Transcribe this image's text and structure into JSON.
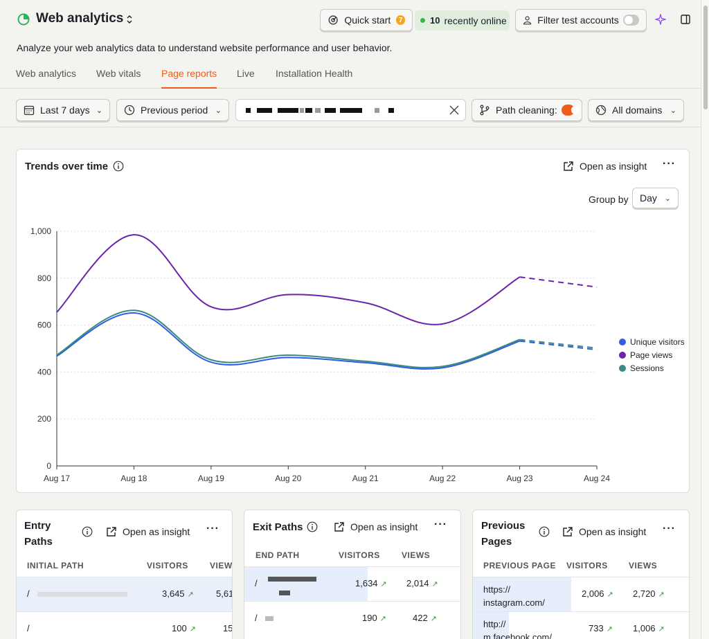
{
  "header": {
    "title": "Web analytics",
    "description": "Analyze your web analytics data to understand website performance and user behavior.",
    "quick_start_label": "Quick start",
    "quick_start_badge": "7",
    "online_count": "10",
    "online_label": "recently online",
    "filter_test_label": "Filter test accounts",
    "filter_test_on": false
  },
  "tabs": [
    {
      "label": "Web analytics",
      "active": false
    },
    {
      "label": "Web vitals",
      "active": false
    },
    {
      "label": "Page reports",
      "active": true
    },
    {
      "label": "Live",
      "active": false
    },
    {
      "label": "Installation Health",
      "active": false
    }
  ],
  "filters": {
    "date_range": "Last 7 days",
    "compare": "Previous period",
    "path_cleaning_label": "Path cleaning:",
    "path_cleaning_on": true,
    "domains": "All domains"
  },
  "trends": {
    "title": "Trends over time",
    "open_insight": "Open as insight",
    "more": "···",
    "group_by_label": "Group by",
    "group_by_value": "Day"
  },
  "chart_data": {
    "type": "line",
    "title": "Trends over time",
    "x": [
      "Aug 17",
      "Aug 18",
      "Aug 19",
      "Aug 20",
      "Aug 21",
      "Aug 22",
      "Aug 23",
      "Aug 24"
    ],
    "ylim": [
      0,
      1000
    ],
    "yticks": [
      0,
      200,
      400,
      600,
      800,
      1000
    ],
    "ytick_labels": [
      "0",
      "200",
      "400",
      "600",
      "800",
      "1,000"
    ],
    "grid": true,
    "legend_position": "right",
    "dashed_from_index": 6,
    "series": [
      {
        "name": "Unique visitors",
        "color": "#2f5fe0",
        "values": [
          468,
          652,
          442,
          462,
          440,
          418,
          532,
          495
        ]
      },
      {
        "name": "Page views",
        "color": "#6a24a9",
        "values": [
          655,
          985,
          678,
          730,
          695,
          605,
          805,
          762
        ]
      },
      {
        "name": "Sessions",
        "color": "#3a8a80",
        "values": [
          473,
          663,
          452,
          472,
          446,
          424,
          538,
          502
        ]
      }
    ]
  },
  "entry_paths": {
    "title_line1": "Entry",
    "title_line2": "Paths",
    "open_insight": "Open as insight",
    "more": "···",
    "columns": [
      "INITIAL PATH",
      "VISITORS",
      "VIEWS"
    ],
    "rows": [
      {
        "path": "/",
        "visitors": "3,645",
        "views": "5,61",
        "highlight": true
      },
      {
        "path": "/",
        "visitors": "100",
        "views": "15",
        "highlight": false
      }
    ]
  },
  "exit_paths": {
    "title": "Exit Paths",
    "open_insight": "Open as insight",
    "more": "···",
    "columns": [
      "END PATH",
      "VISITORS",
      "VIEWS"
    ],
    "rows": [
      {
        "path": "/",
        "visitors": "1,634",
        "views": "2,014",
        "highlight": true
      },
      {
        "path": "/",
        "visitors": "190",
        "views": "422",
        "highlight": false
      }
    ]
  },
  "previous_pages": {
    "title_line1": "Previous",
    "title_line2": "Pages",
    "open_insight": "Open as insight",
    "more": "···",
    "columns": [
      "PREVIOUS PAGE",
      "VISITORS",
      "VIEWS"
    ],
    "rows": [
      {
        "line1": "https://",
        "line2": "instagram.com/",
        "visitors": "2,006",
        "views": "2,720",
        "highlight": true
      },
      {
        "line1": "http://",
        "line2": "m.facebook.com/",
        "visitors": "733",
        "views": "1,006",
        "highlight": false
      }
    ]
  },
  "icons": {
    "logo": "pie-chart-icon",
    "quick_start": "rocket-icon",
    "filter_test": "person-icon",
    "sparkle": "sparkle-icon",
    "panel": "side-panel-icon",
    "date": "calendar-icon",
    "compare": "clock-icon",
    "path_cleaning": "branch-icon",
    "domains": "globe-icon"
  },
  "colors": {
    "accent": "#f05a1a",
    "online_bg": "#e1eede",
    "online_dot": "#3eb24b"
  }
}
